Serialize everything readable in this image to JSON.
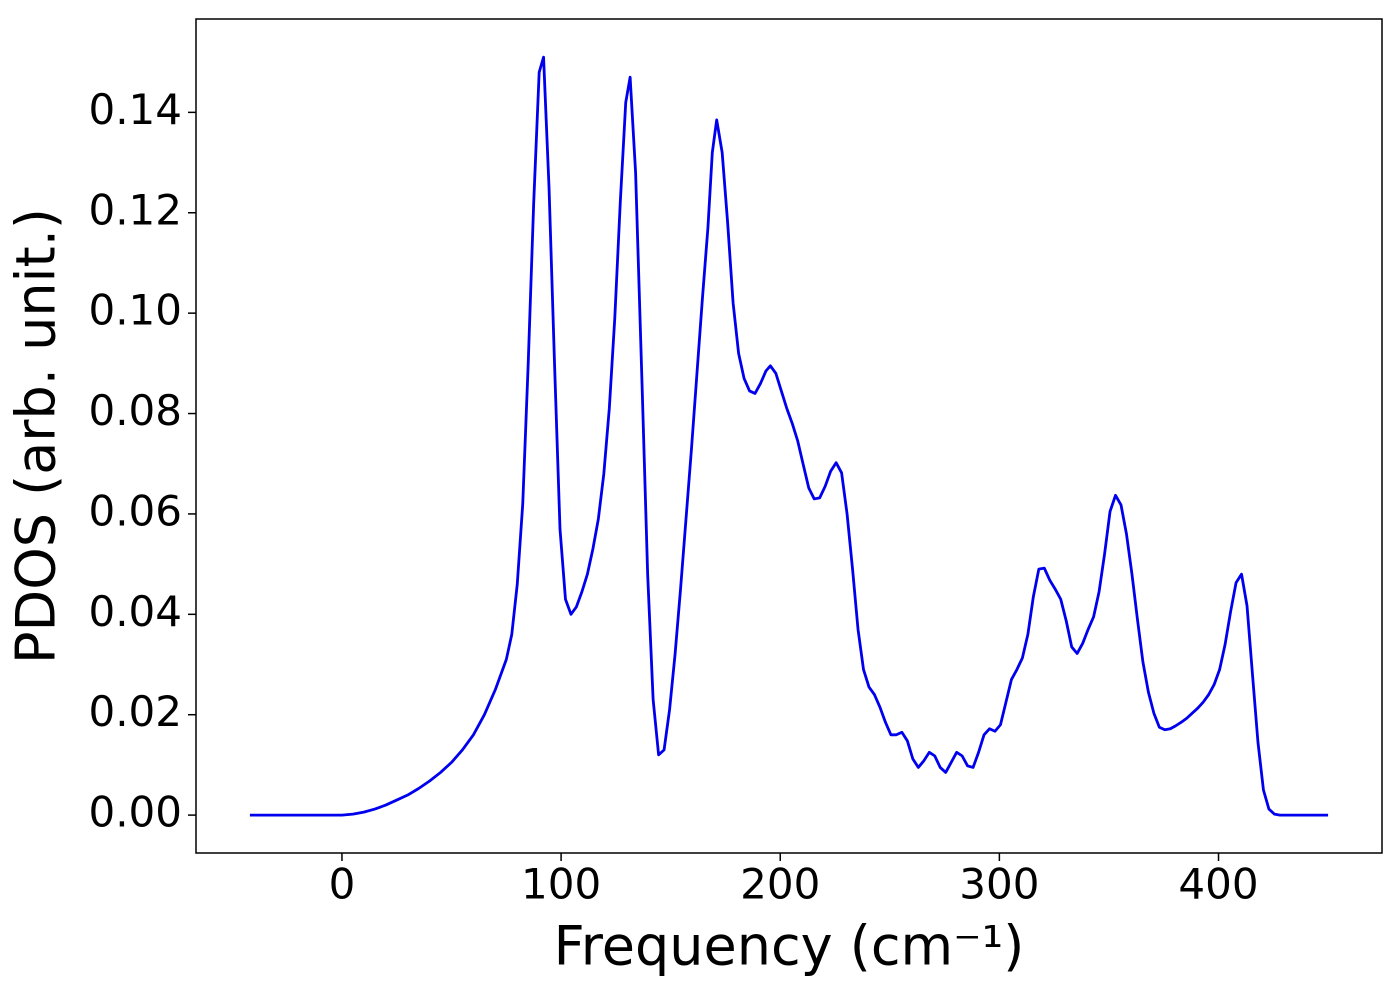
{
  "chart_data": {
    "type": "line",
    "x_label": "Frequency (cm⁻¹)",
    "y_label": "PDOS (arb. unit.)",
    "xlim": [
      -66.6,
      474.6
    ],
    "ylim": [
      -0.00755,
      0.1586
    ],
    "xticks": [
      0,
      100,
      200,
      300,
      400
    ],
    "yticks": [
      {
        "value": 0,
        "label": "0.00"
      },
      {
        "value": 0.02,
        "label": "0.02"
      },
      {
        "value": 0.04,
        "label": "0.04"
      },
      {
        "value": 0.06,
        "label": "0.06"
      },
      {
        "value": 0.08,
        "label": "0.08"
      },
      {
        "value": 0.1,
        "label": "0.10"
      },
      {
        "value": 0.12,
        "label": "0.12"
      },
      {
        "value": 0.14,
        "label": "0.14"
      }
    ],
    "x": [
      -42,
      0,
      5,
      10,
      15,
      20,
      25,
      30,
      35,
      40,
      45,
      50,
      55,
      60,
      65,
      70,
      75,
      77.5,
      80,
      82.5,
      85,
      87.5,
      90,
      92,
      94.5,
      97,
      99.5,
      102,
      104.5,
      107,
      109.5,
      112,
      114.5,
      117,
      119.5,
      122,
      124.5,
      127,
      129.5,
      131.5,
      134,
      137,
      139.5,
      142,
      144.5,
      147,
      149.5,
      152,
      154.5,
      157,
      159.5,
      162,
      164.5,
      167,
      169,
      171,
      173.5,
      176,
      178.5,
      181,
      183.5,
      186,
      188.5,
      191,
      193.5,
      195.5,
      198,
      200.5,
      203,
      205.5,
      208,
      210.5,
      213,
      215.5,
      218,
      220.5,
      223,
      225.5,
      228,
      230.5,
      233,
      235.5,
      238,
      240.5,
      243,
      245.5,
      248,
      250.5,
      253,
      255.5,
      258,
      260.5,
      263,
      265.5,
      268,
      270.5,
      273,
      275.5,
      278,
      280.5,
      283,
      285.5,
      288,
      290.5,
      293,
      295.5,
      298,
      300.5,
      303,
      305.5,
      308,
      310.5,
      313,
      315.5,
      318,
      320.5,
      323,
      325.5,
      328,
      330.5,
      333,
      335.5,
      338,
      340.5,
      343,
      345.5,
      348,
      350.5,
      353,
      355.5,
      358,
      360.5,
      363,
      365.5,
      368,
      370.5,
      373,
      375.5,
      378,
      380.5,
      383,
      385.5,
      388,
      390.5,
      393,
      395.5,
      398,
      400.5,
      403,
      405.5,
      408,
      410.5,
      413,
      415.5,
      418,
      420.5,
      423,
      425.5,
      428,
      450
    ],
    "series": [
      {
        "name": "PDOS",
        "color": "#0000ee",
        "values": [
          0,
          0,
          0.0002,
          0.0006,
          0.0012,
          0.002,
          0.003,
          0.004,
          0.0053,
          0.0068,
          0.0085,
          0.0105,
          0.013,
          0.016,
          0.02,
          0.025,
          0.031,
          0.036,
          0.046,
          0.062,
          0.09,
          0.122,
          0.148,
          0.151,
          0.125,
          0.09,
          0.057,
          0.043,
          0.04,
          0.0415,
          0.0445,
          0.048,
          0.053,
          0.059,
          0.068,
          0.081,
          0.099,
          0.122,
          0.142,
          0.147,
          0.128,
          0.085,
          0.048,
          0.023,
          0.012,
          0.013,
          0.021,
          0.032,
          0.045,
          0.059,
          0.073,
          0.088,
          0.103,
          0.117,
          0.132,
          0.1385,
          0.132,
          0.118,
          0.102,
          0.092,
          0.087,
          0.0845,
          0.084,
          0.086,
          0.0885,
          0.0895,
          0.088,
          0.0845,
          0.081,
          0.078,
          0.0745,
          0.0698,
          0.0652,
          0.063,
          0.0632,
          0.0655,
          0.0685,
          0.0702,
          0.0682,
          0.06,
          0.049,
          0.037,
          0.029,
          0.0255,
          0.024,
          0.0215,
          0.0185,
          0.016,
          0.016,
          0.0165,
          0.0148,
          0.0112,
          0.0095,
          0.0108,
          0.0125,
          0.0118,
          0.0095,
          0.0085,
          0.0105,
          0.0125,
          0.0118,
          0.0098,
          0.0095,
          0.0125,
          0.016,
          0.0172,
          0.0167,
          0.018,
          0.0225,
          0.027,
          0.029,
          0.0313,
          0.036,
          0.0435,
          0.049,
          0.0492,
          0.0468,
          0.045,
          0.043,
          0.0387,
          0.0335,
          0.0322,
          0.0342,
          0.037,
          0.0395,
          0.0445,
          0.052,
          0.0605,
          0.0637,
          0.0618,
          0.056,
          0.048,
          0.039,
          0.0305,
          0.0245,
          0.0203,
          0.0175,
          0.017,
          0.0172,
          0.0178,
          0.0185,
          0.0193,
          0.0203,
          0.0213,
          0.0225,
          0.024,
          0.026,
          0.029,
          0.034,
          0.0405,
          0.0463,
          0.048,
          0.0417,
          0.028,
          0.0145,
          0.005,
          0.0012,
          0.0002,
          0,
          0
        ]
      }
    ]
  }
}
